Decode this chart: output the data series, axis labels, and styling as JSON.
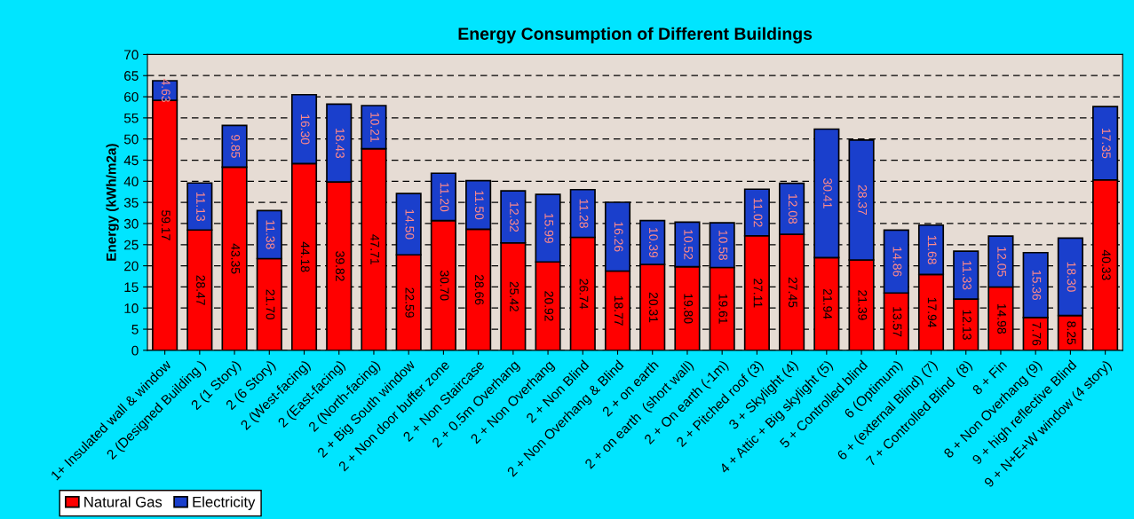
{
  "chart_data": {
    "type": "bar",
    "title": "Energy Consumption of Different Buildings",
    "ylabel": "Energy (kWh/m2a)",
    "categories": [
      "1+ Insulated wall & window",
      "2 (Designed Building )",
      "2 (1 Story)",
      "2 (6 Story)",
      "2 (West-facing)",
      "2 (East-facing)",
      "2 (North-facing)",
      "2 + Big South window",
      "2 + Non door buffer zone",
      "2 + Non Staircase",
      "2 + 0.5m Overhang",
      "2 + Non Overhang",
      "2 + Non Blind",
      "2 + Non Overhang & Blind",
      "2 + on earth",
      "2 + on earth  (short wall)",
      "2 + On earth (-1m)",
      "2 + Pitched roof (3)",
      "3 + Skylight (4)",
      "4 + Attic + Big skylight (5)",
      "5 + Controlled blind",
      "6 (Optimum)",
      "6 + (external Blind) (7)",
      "7 + Controlled Blind  (8)",
      "8 + Fin",
      "8 + Non Overhang (9)",
      "9 + high reflective Blind",
      "9 + N+E+W window (4 story)"
    ],
    "stacked": true,
    "series": [
      {
        "name": "Natural Gas",
        "color": "#ff0000",
        "values": [
          59.17,
          28.47,
          43.35,
          21.7,
          44.18,
          39.82,
          47.71,
          22.59,
          30.7,
          28.66,
          25.42,
          20.92,
          26.74,
          18.77,
          20.31,
          19.8,
          19.61,
          27.11,
          27.45,
          21.94,
          21.39,
          13.57,
          17.94,
          12.13,
          14.98,
          7.76,
          8.25,
          40.33
        ],
        "value_labels": [
          "59.17",
          "28.47",
          "43.35",
          "21.70",
          "44.18",
          "39.82",
          "47.71",
          "22.59",
          "30.70",
          "28.66",
          "25.42",
          "20.92",
          "26.74",
          "18.77",
          "20.31",
          "19.80",
          "19.61",
          "27.11",
          "27.45",
          "21.94",
          "21.39",
          "13.57",
          "17.94",
          "12.13",
          "14.98",
          "7.76",
          "8.25",
          "40.33"
        ]
      },
      {
        "name": "Electricity",
        "color": "#1a3fcc",
        "values": [
          4.63,
          11.13,
          9.85,
          11.38,
          16.3,
          18.43,
          10.21,
          14.5,
          11.2,
          11.5,
          12.32,
          15.99,
          11.28,
          16.26,
          10.39,
          10.52,
          10.58,
          11.02,
          12.08,
          30.41,
          28.37,
          14.86,
          11.68,
          11.33,
          12.05,
          15.36,
          18.3,
          17.35
        ],
        "value_labels": [
          "4.63",
          "11.13",
          "9.85",
          "11.38",
          "16.30",
          "18.43",
          "10.21",
          "14.50",
          "11.20",
          "11.50",
          "12.32",
          "15.99",
          "11.28",
          "16.26",
          "10.39",
          "10.52",
          "10.58",
          "11.02",
          "12.08",
          "30.41",
          "28.37",
          "14.86",
          "11.68",
          "11.33",
          "12.05",
          "15.36",
          "18.30",
          "17.35"
        ]
      }
    ],
    "ylim": [
      0,
      70
    ],
    "yticks": [
      0,
      5,
      10,
      15,
      20,
      25,
      30,
      35,
      40,
      45,
      50,
      55,
      60,
      65,
      70
    ],
    "grid": "y",
    "legend": "bottom left"
  }
}
